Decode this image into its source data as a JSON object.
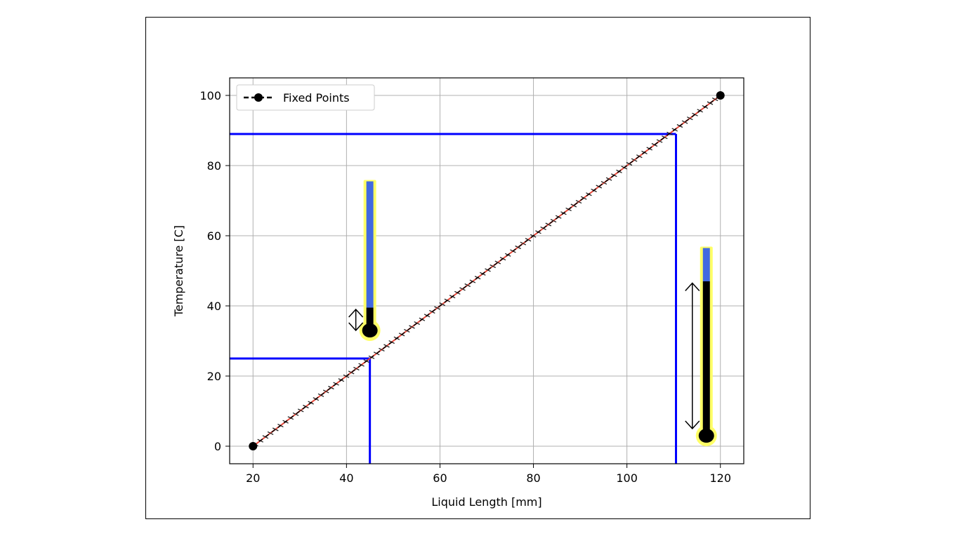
{
  "chart_data": {
    "type": "line",
    "title": "",
    "xlabel": "Liquid Length [mm]",
    "ylabel": "Temperature [C]",
    "xlim": [
      15,
      125
    ],
    "ylim": [
      -5,
      105
    ],
    "xticks": [
      20,
      40,
      60,
      80,
      100,
      120
    ],
    "yticks": [
      0,
      20,
      40,
      60,
      80,
      100
    ],
    "grid": true,
    "legend": {
      "placement": "top-left",
      "entries": [
        "Fixed Points"
      ]
    },
    "series": [
      {
        "name": "Fixed Points",
        "x": [
          20,
          120
        ],
        "y": [
          0,
          100
        ],
        "style": "dashed-with-markers",
        "color": "#000000"
      }
    ],
    "calibration_line": {
      "x": [
        20,
        120
      ],
      "y": [
        0,
        100
      ],
      "color": "#e8483a"
    },
    "reference_lines": [
      {
        "x": 45,
        "y": 25,
        "color": "#0000ff"
      },
      {
        "x": 110.5,
        "y": 89,
        "color": "#0000ff"
      }
    ],
    "thermometers": [
      {
        "x": 45,
        "bulb_y": 33,
        "top_y": 75.5,
        "liquid_top_y": 39.5,
        "arrow_from_y": 39,
        "arrow_to_y": 33,
        "tube_color": "#4169e1",
        "outline_color": "#ffff66",
        "liquid_color": "#000000"
      },
      {
        "x": 117,
        "bulb_y": 3,
        "top_y": 56.5,
        "liquid_top_y": 47,
        "arrow_from_y": 46.5,
        "arrow_to_y": 5,
        "tube_color": "#4169e1",
        "outline_color": "#ffff66",
        "liquid_color": "#000000"
      }
    ]
  }
}
